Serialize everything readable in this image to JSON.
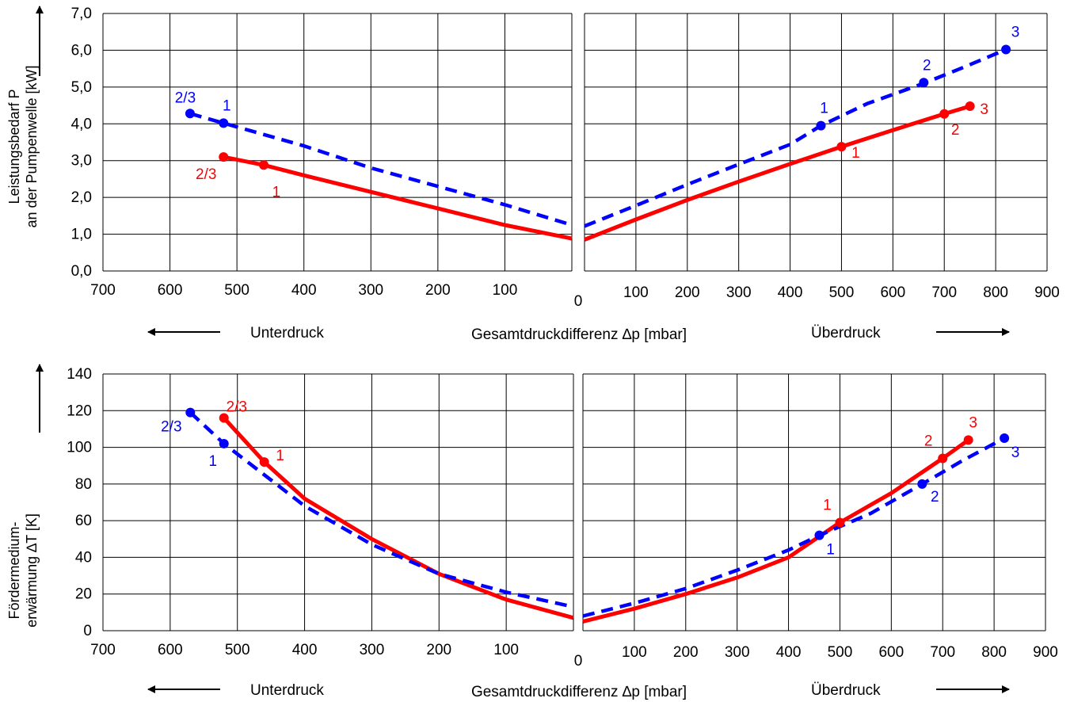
{
  "chart_data": [
    {
      "type": "line",
      "panel": "top",
      "ylabel_lines": [
        "Leistungsbedarf P",
        "an der Pumpenwelle [kW]"
      ],
      "ylim": [
        0,
        7
      ],
      "yticks": [
        "0,0",
        "1,0",
        "2,0",
        "3,0",
        "4,0",
        "5,0",
        "6,0",
        "7,0"
      ],
      "left_xlim": [
        700,
        0
      ],
      "left_xticks": [
        "700",
        "600",
        "500",
        "400",
        "300",
        "200",
        "100"
      ],
      "right_xlim": [
        0,
        900
      ],
      "right_xticks": [
        "100",
        "200",
        "300",
        "400",
        "500",
        "600",
        "700",
        "800",
        "900"
      ],
      "zero_label": "0",
      "grid": true,
      "series": [
        {
          "color": "#ff0000",
          "style": "solid",
          "left_curve": [
            [
              520,
              3.1
            ],
            [
              460,
              2.88
            ],
            [
              400,
              2.6
            ],
            [
              300,
              2.15
            ],
            [
              200,
              1.7
            ],
            [
              100,
              1.25
            ],
            [
              0,
              0.88
            ]
          ],
          "left_points": [
            [
              520,
              3.1
            ],
            [
              460,
              2.88
            ]
          ],
          "right_curve": [
            [
              0,
              0.85
            ],
            [
              100,
              1.4
            ],
            [
              200,
              1.93
            ],
            [
              300,
              2.43
            ],
            [
              400,
              2.91
            ],
            [
              500,
              3.38
            ],
            [
              600,
              3.83
            ],
            [
              700,
              4.27
            ],
            [
              750,
              4.48
            ]
          ],
          "right_points": [
            [
              500,
              3.38
            ],
            [
              700,
              4.27
            ],
            [
              750,
              4.48
            ]
          ]
        },
        {
          "color": "#0000ff",
          "style": "dashed",
          "left_curve": [
            [
              570,
              4.28
            ],
            [
              520,
              4.02
            ],
            [
              400,
              3.4
            ],
            [
              300,
              2.8
            ],
            [
              200,
              2.3
            ],
            [
              100,
              1.8
            ],
            [
              0,
              1.25
            ]
          ],
          "left_points": [
            [
              570,
              4.28
            ],
            [
              520,
              4.02
            ]
          ],
          "right_curve": [
            [
              0,
              1.22
            ],
            [
              100,
              1.78
            ],
            [
              200,
              2.35
            ],
            [
              300,
              2.9
            ],
            [
              400,
              3.44
            ],
            [
              460,
              3.95
            ],
            [
              550,
              4.55
            ],
            [
              660,
              5.1
            ],
            [
              740,
              5.55
            ],
            [
              820,
              6.02
            ]
          ],
          "right_points": [
            [
              460,
              3.95
            ],
            [
              660,
              5.12
            ],
            [
              820,
              6.02
            ]
          ]
        }
      ],
      "point_labels": [
        {
          "text": "2/3",
          "color": "#0000ff",
          "side": "left",
          "x": 570,
          "y": 4.28
        },
        {
          "text": "1",
          "color": "#0000ff",
          "side": "left",
          "x": 520,
          "y": 4.02
        },
        {
          "text": "2/3",
          "color": "#ff0000",
          "side": "left",
          "x": 520,
          "y": 3.1
        },
        {
          "text": "1",
          "color": "#ff0000",
          "side": "left",
          "x": 460,
          "y": 2.88
        },
        {
          "text": "1",
          "color": "#0000ff",
          "side": "right",
          "x": 460,
          "y": 3.95
        },
        {
          "text": "2",
          "color": "#0000ff",
          "side": "right",
          "x": 660,
          "y": 5.12
        },
        {
          "text": "3",
          "color": "#0000ff",
          "side": "right",
          "x": 820,
          "y": 6.02
        },
        {
          "text": "1",
          "color": "#ff0000",
          "side": "right",
          "x": 500,
          "y": 3.38
        },
        {
          "text": "2",
          "color": "#ff0000",
          "side": "right",
          "x": 700,
          "y": 4.27
        },
        {
          "text": "3",
          "color": "#ff0000",
          "side": "right",
          "x": 750,
          "y": 4.48
        }
      ],
      "footer": {
        "left": "Unterdruck",
        "center": "Gesamtdruckdifferenz ∆p [mbar]",
        "right": "Überdruck"
      }
    },
    {
      "type": "line",
      "panel": "bottom",
      "ylabel_lines": [
        "Fördermedium-",
        "erwärmung ∆T [K]"
      ],
      "ylim": [
        0,
        140
      ],
      "yticks": [
        "0",
        "20",
        "40",
        "60",
        "80",
        "100",
        "120",
        "140"
      ],
      "left_xlim": [
        700,
        0
      ],
      "left_xticks": [
        "700",
        "600",
        "500",
        "400",
        "300",
        "200",
        "100"
      ],
      "right_xlim": [
        0,
        900
      ],
      "right_xticks": [
        "100",
        "200",
        "300",
        "400",
        "500",
        "600",
        "700",
        "800",
        "900"
      ],
      "zero_label": "0",
      "grid": true,
      "series": [
        {
          "color": "#ff0000",
          "style": "solid",
          "left_curve": [
            [
              520,
              116
            ],
            [
              460,
              92
            ],
            [
              400,
              72
            ],
            [
              300,
              50
            ],
            [
              200,
              31
            ],
            [
              100,
              17
            ],
            [
              0,
              7
            ]
          ],
          "left_points": [
            [
              520,
              116
            ],
            [
              460,
              92
            ]
          ],
          "right_curve": [
            [
              0,
              5
            ],
            [
              100,
              12
            ],
            [
              200,
              20
            ],
            [
              300,
              29
            ],
            [
              400,
              40
            ],
            [
              500,
              59
            ],
            [
              600,
              75
            ],
            [
              700,
              94
            ],
            [
              750,
              104
            ]
          ],
          "right_points": [
            [
              500,
              59
            ],
            [
              700,
              94
            ],
            [
              750,
              104
            ]
          ]
        },
        {
          "color": "#0000ff",
          "style": "dashed",
          "left_curve": [
            [
              570,
              119
            ],
            [
              520,
              102
            ],
            [
              400,
              68
            ],
            [
              300,
              47
            ],
            [
              200,
              31
            ],
            [
              100,
              21
            ],
            [
              0,
              13
            ]
          ],
          "left_points": [
            [
              570,
              119
            ],
            [
              520,
              102
            ]
          ],
          "right_curve": [
            [
              0,
              8
            ],
            [
              100,
              15
            ],
            [
              200,
              23
            ],
            [
              300,
              33
            ],
            [
              400,
              44
            ],
            [
              460,
              52
            ],
            [
              560,
              64
            ],
            [
              660,
              80
            ],
            [
              740,
              93
            ],
            [
              820,
              105
            ]
          ],
          "right_points": [
            [
              460,
              52
            ],
            [
              660,
              80
            ],
            [
              820,
              105
            ]
          ]
        }
      ],
      "point_labels": [
        {
          "text": "2/3",
          "color": "#ff0000",
          "side": "left",
          "x": 520,
          "y": 116
        },
        {
          "text": "1",
          "color": "#ff0000",
          "side": "left",
          "x": 460,
          "y": 92
        },
        {
          "text": "2/3",
          "color": "#0000ff",
          "side": "left",
          "x": 570,
          "y": 119
        },
        {
          "text": "1",
          "color": "#0000ff",
          "side": "left",
          "x": 520,
          "y": 102
        },
        {
          "text": "1",
          "color": "#ff0000",
          "side": "right",
          "x": 500,
          "y": 59
        },
        {
          "text": "2",
          "color": "#ff0000",
          "side": "right",
          "x": 700,
          "y": 94
        },
        {
          "text": "3",
          "color": "#ff0000",
          "side": "right",
          "x": 750,
          "y": 104
        },
        {
          "text": "1",
          "color": "#0000ff",
          "side": "right",
          "x": 460,
          "y": 52
        },
        {
          "text": "2",
          "color": "#0000ff",
          "side": "right",
          "x": 660,
          "y": 80
        },
        {
          "text": "3",
          "color": "#0000ff",
          "side": "right",
          "x": 820,
          "y": 105
        }
      ],
      "footer": {
        "left": "Unterdruck",
        "center": "Gesamtdruckdifferenz ∆p [mbar]",
        "right": "Überdruck"
      }
    }
  ]
}
